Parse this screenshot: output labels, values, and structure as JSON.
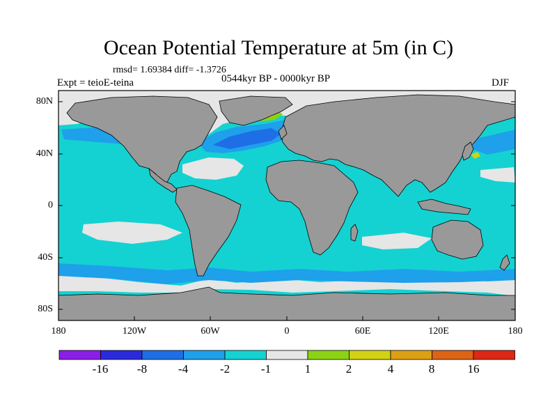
{
  "title": "Ocean Potential Temperature at 5m (in C)",
  "stats_line": "rmsd= 1.69384 diff= -1.3726",
  "experiment_label": "Expt = teioE-teina",
  "period_label": "0544kyr BP - 0000kyr BP",
  "season_label": "DJF",
  "lat_labels": [
    "80N",
    "40N",
    "0",
    "40S",
    "80S"
  ],
  "lon_labels": [
    "180",
    "120W",
    "60W",
    "0",
    "60E",
    "120E",
    "180"
  ],
  "colorbar": {
    "bins": [
      {
        "color": "#8a1ee6"
      },
      {
        "color": "#2a2adc"
      },
      {
        "color": "#1e6ee6"
      },
      {
        "color": "#1ea0ea"
      },
      {
        "color": "#14d2d2"
      },
      {
        "color": "#e6e6e6"
      },
      {
        "color": "#8cd214"
      },
      {
        "color": "#d2d214"
      },
      {
        "color": "#dca014"
      },
      {
        "color": "#dc6414"
      },
      {
        "color": "#dc2814"
      }
    ],
    "labels": [
      "-16",
      "-8",
      "-4",
      "-2",
      "-1",
      "1",
      "2",
      "4",
      "8",
      "16"
    ]
  },
  "colors": {
    "land": "#999999",
    "ocean_base": "#14d2d2",
    "near_zero": "#e6e6e6",
    "cool_minus2": "#1ea0ea",
    "cool_minus4": "#1e6ee6",
    "warm_plus2": "#8cd214",
    "warm_plus4": "#d2d214"
  }
}
